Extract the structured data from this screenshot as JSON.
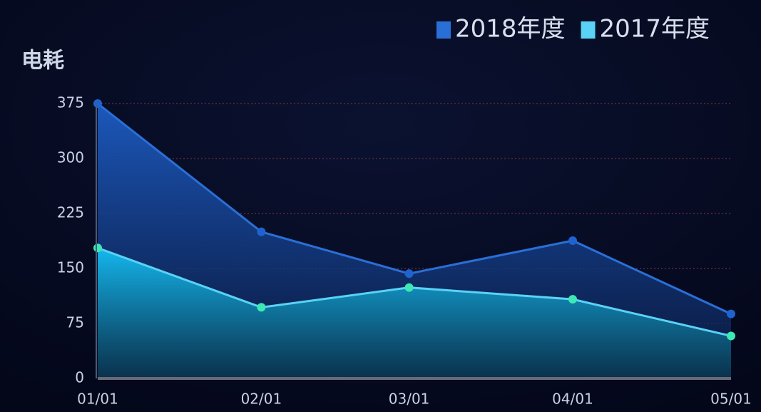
{
  "chart_data": {
    "type": "area",
    "y_label": "电耗",
    "categories": [
      "01/01",
      "02/01",
      "03/01",
      "04/01",
      "05/01"
    ],
    "series": [
      {
        "name": "2018年度",
        "color": "#2a6fd6",
        "values": [
          375,
          200,
          143,
          188,
          88
        ]
      },
      {
        "name": "2017年度",
        "color": "#5ad2f5",
        "values": [
          178,
          97,
          124,
          108,
          58
        ]
      }
    ],
    "ylim": [
      0,
      375
    ],
    "yticks": [
      0,
      75,
      150,
      225,
      300,
      375
    ],
    "grid": true
  }
}
